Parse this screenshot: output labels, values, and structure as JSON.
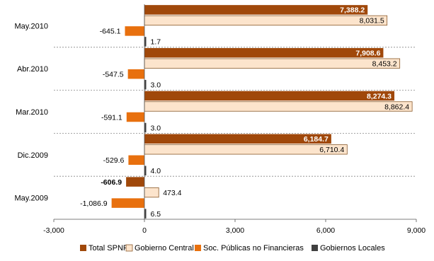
{
  "chart_data": {
    "type": "bar",
    "orientation": "horizontal",
    "categories": [
      "May.2010",
      "Abr.2010",
      "Mar.2010",
      "Dic.2009",
      "May.2009"
    ],
    "series": [
      {
        "name": "Total SPNF",
        "color": "#A0480A",
        "values": [
          7388.2,
          7908.6,
          8274.3,
          6184.7,
          -606.9
        ],
        "labels": [
          "7,388.2",
          "7,908.6",
          "8,274.3",
          "6,184.7",
          "-606.9"
        ]
      },
      {
        "name": "Gobierno Central",
        "color": "#FCE4CC",
        "values": [
          8031.5,
          8453.2,
          8862.4,
          6710.4,
          473.4
        ],
        "labels": [
          "8,031.5",
          "8,453.2",
          "8,862.4",
          "6,710.4",
          "473.4"
        ]
      },
      {
        "name": "Soc. Públicas no Financieras",
        "color": "#E8700E",
        "values": [
          -645.1,
          -547.5,
          -591.1,
          -529.6,
          -1086.9
        ],
        "labels": [
          "-645.1",
          "-547.5",
          "-591.1",
          "-529.6",
          "-1,086.9"
        ]
      },
      {
        "name": "Gobiernos Locales",
        "color": "#404040",
        "values": [
          1.7,
          3.0,
          3.0,
          4.0,
          6.5
        ],
        "labels": [
          "1.7",
          "3.0",
          "3.0",
          "4.0",
          "6.5"
        ]
      }
    ],
    "xlim": [
      -3000,
      9000
    ],
    "xticks": [
      -3000,
      0,
      3000,
      6000,
      9000
    ],
    "xtick_labels": [
      "-3,000",
      "0",
      "3,000",
      "6,000",
      "9,000"
    ],
    "legend_position": "bottom"
  }
}
